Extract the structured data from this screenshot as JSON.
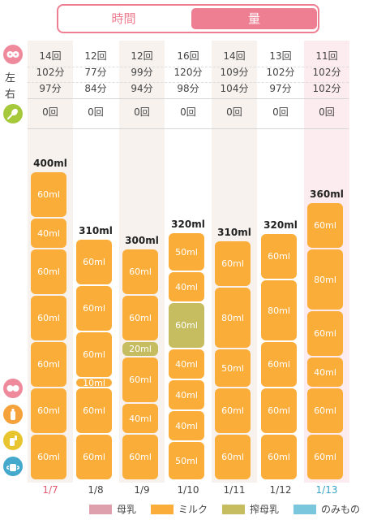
{
  "tabs": {
    "time": "時間",
    "amount": "量"
  },
  "labels": {
    "left": "左",
    "right": "右"
  },
  "colors": {
    "breast_milk": "#dfa0ad",
    "formula": "#fbad39",
    "pumped": "#c6bd61",
    "drink": "#7ac6dc",
    "accent": "#ee7f92",
    "today_date": "#e25b73",
    "selected_date": "#3aa3c9"
  },
  "days": [
    {
      "date": "1/7",
      "nursing": "14回",
      "left": "102分",
      "right": "97分",
      "baby_food": "0回",
      "total": "400ml"
    },
    {
      "date": "1/8",
      "nursing": "12回",
      "left": "77分",
      "right": "84分",
      "baby_food": "0回",
      "total": "310ml"
    },
    {
      "date": "1/9",
      "nursing": "12回",
      "left": "99分",
      "right": "94分",
      "baby_food": "0回",
      "total": "300ml"
    },
    {
      "date": "1/10",
      "nursing": "16回",
      "left": "120分",
      "right": "98分",
      "baby_food": "0回",
      "total": "320ml"
    },
    {
      "date": "1/11",
      "nursing": "14回",
      "left": "109分",
      "right": "104分",
      "baby_food": "0回",
      "total": "310ml"
    },
    {
      "date": "1/12",
      "nursing": "13回",
      "left": "102分",
      "right": "97分",
      "baby_food": "0回",
      "total": "320ml"
    },
    {
      "date": "1/13",
      "nursing": "11回",
      "left": "102分",
      "right": "102分",
      "baby_food": "0回",
      "total": "360ml"
    }
  ],
  "chart_data": {
    "type": "bar",
    "stacked": true,
    "categories": [
      "1/7",
      "1/8",
      "1/9",
      "1/10",
      "1/11",
      "1/12",
      "1/13"
    ],
    "totals": [
      400,
      310,
      300,
      320,
      310,
      320,
      360
    ],
    "stacks": [
      [
        {
          "kind": "milk",
          "label": "60ml"
        },
        {
          "kind": "milk",
          "label": "60ml"
        },
        {
          "kind": "milk",
          "label": "60ml"
        },
        {
          "kind": "milk",
          "label": "60ml"
        },
        {
          "kind": "milk",
          "label": "60ml"
        },
        {
          "kind": "milk",
          "label": "40ml"
        },
        {
          "kind": "milk",
          "label": "60ml"
        }
      ],
      [
        {
          "kind": "milk",
          "label": "60ml"
        },
        {
          "kind": "milk",
          "label": "60ml"
        },
        {
          "kind": "milk",
          "label": "10ml"
        },
        {
          "kind": "milk",
          "label": "60ml"
        },
        {
          "kind": "milk",
          "label": "60ml"
        },
        {
          "kind": "milk",
          "label": "60ml"
        }
      ],
      [
        {
          "kind": "milk",
          "label": "60ml"
        },
        {
          "kind": "milk",
          "label": "40ml"
        },
        {
          "kind": "milk",
          "label": "60ml"
        },
        {
          "kind": "pumped",
          "label": "20ml"
        },
        {
          "kind": "milk",
          "label": "60ml"
        },
        {
          "kind": "milk",
          "label": "60ml"
        }
      ],
      [
        {
          "kind": "milk",
          "label": "50ml"
        },
        {
          "kind": "milk",
          "label": "40ml"
        },
        {
          "kind": "milk",
          "label": "40ml"
        },
        {
          "kind": "milk",
          "label": "40ml"
        },
        {
          "kind": "pumped",
          "label": "60ml"
        },
        {
          "kind": "milk",
          "label": "40ml"
        },
        {
          "kind": "milk",
          "label": "50ml"
        }
      ],
      [
        {
          "kind": "milk",
          "label": "60ml"
        },
        {
          "kind": "milk",
          "label": "60ml"
        },
        {
          "kind": "milk",
          "label": "50ml"
        },
        {
          "kind": "milk",
          "label": "80ml"
        },
        {
          "kind": "milk",
          "label": "60ml"
        }
      ],
      [
        {
          "kind": "milk",
          "label": "60ml"
        },
        {
          "kind": "milk",
          "label": "60ml"
        },
        {
          "kind": "milk",
          "label": "60ml"
        },
        {
          "kind": "milk",
          "label": "80ml"
        },
        {
          "kind": "milk",
          "label": "60ml"
        }
      ],
      [
        {
          "kind": "milk",
          "label": "60ml"
        },
        {
          "kind": "milk",
          "label": "60ml"
        },
        {
          "kind": "milk",
          "label": "40ml"
        },
        {
          "kind": "milk",
          "label": "60ml"
        },
        {
          "kind": "milk",
          "label": "80ml"
        },
        {
          "kind": "milk",
          "label": "60ml"
        }
      ]
    ],
    "legend": [
      {
        "kind": "breast",
        "label": "母乳",
        "color": "#dfa0ad"
      },
      {
        "kind": "milk",
        "label": "ミルク",
        "color": "#fbad39"
      },
      {
        "kind": "pumped",
        "label": "搾母乳",
        "color": "#c6bd61"
      },
      {
        "kind": "drink",
        "label": "のみもの",
        "color": "#7ac6dc"
      }
    ],
    "legend_placement": "bottom"
  }
}
